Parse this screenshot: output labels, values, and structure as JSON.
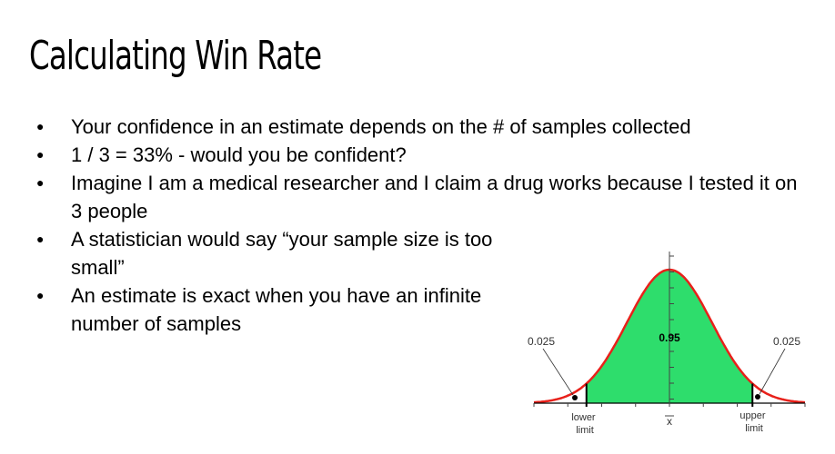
{
  "slide": {
    "title": "Calculating Win Rate",
    "bullets": [
      "Your confidence in an estimate depends on the # of samples collected",
      "1 / 3 = 33% - would you be confident?",
      "Imagine I am a medical researcher and I claim a drug works because I tested it on 3 people",
      "A statistician would say “your sample size is too small”",
      "An estimate is exact when you have an infinite number of samples"
    ],
    "bullet_marker": "●"
  },
  "chart_data": {
    "type": "area",
    "distribution": "normal",
    "center_label": "0.95",
    "left_tail_label": "0.025",
    "right_tail_label": "0.025",
    "lower_label": [
      "lower",
      "limit"
    ],
    "upper_label": [
      "upper",
      "limit"
    ],
    "mean_label": "x",
    "lower_limit_z": -1.96,
    "upper_limit_z": 1.96,
    "x_range": [
      -3.2,
      3.2
    ],
    "colors": {
      "curve": "#e8201a",
      "fill": "#2edd6c",
      "axis": "#000000"
    }
  }
}
